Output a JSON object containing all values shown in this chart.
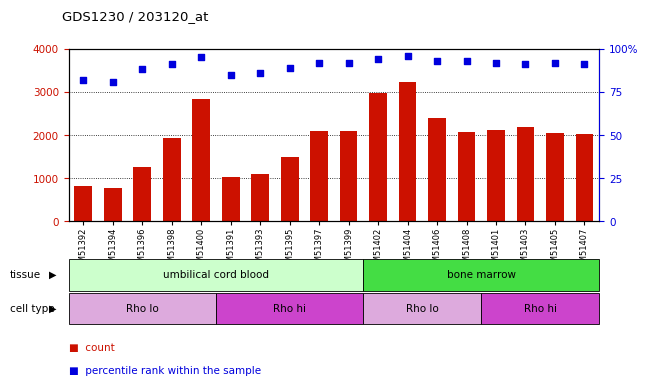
{
  "title": "GDS1230 / 203120_at",
  "categories": [
    "GSM51392",
    "GSM51394",
    "GSM51396",
    "GSM51398",
    "GSM51400",
    "GSM51391",
    "GSM51393",
    "GSM51395",
    "GSM51397",
    "GSM51399",
    "GSM51402",
    "GSM51404",
    "GSM51406",
    "GSM51408",
    "GSM51401",
    "GSM51403",
    "GSM51405",
    "GSM51407"
  ],
  "bar_values": [
    820,
    760,
    1260,
    1920,
    2840,
    1030,
    1100,
    1500,
    2100,
    2090,
    2970,
    3230,
    2400,
    2080,
    2120,
    2180,
    2040,
    2030
  ],
  "dot_values_pct": [
    82,
    81,
    88,
    91,
    95,
    85,
    86,
    89,
    92,
    92,
    94,
    96,
    93,
    93,
    92,
    91,
    92,
    91
  ],
  "bar_color": "#cc1100",
  "dot_color": "#0000dd",
  "ylim_left": [
    0,
    4000
  ],
  "ylim_right": [
    0,
    100
  ],
  "yticks_left": [
    0,
    1000,
    2000,
    3000,
    4000
  ],
  "ytick_labels_left": [
    "0",
    "1000",
    "2000",
    "3000",
    "4000"
  ],
  "yticks_right": [
    0,
    25,
    50,
    75,
    100
  ],
  "ytick_labels_right": [
    "0",
    "25",
    "50",
    "75",
    "100%"
  ],
  "tissue_labels": [
    {
      "label": "umbilical cord blood",
      "start": 0,
      "end": 10,
      "color": "#ccffcc"
    },
    {
      "label": "bone marrow",
      "start": 10,
      "end": 18,
      "color": "#44dd44"
    }
  ],
  "cell_type_labels": [
    {
      "label": "Rho lo",
      "start": 0,
      "end": 5,
      "color": "#ddaadd"
    },
    {
      "label": "Rho hi",
      "start": 5,
      "end": 10,
      "color": "#cc44cc"
    },
    {
      "label": "Rho lo",
      "start": 10,
      "end": 14,
      "color": "#ddaadd"
    },
    {
      "label": "Rho hi",
      "start": 14,
      "end": 18,
      "color": "#cc44cc"
    }
  ],
  "legend_items": [
    {
      "label": "count",
      "color": "#cc1100"
    },
    {
      "label": "percentile rank within the sample",
      "color": "#0000dd"
    }
  ],
  "background_color": "#ffffff"
}
